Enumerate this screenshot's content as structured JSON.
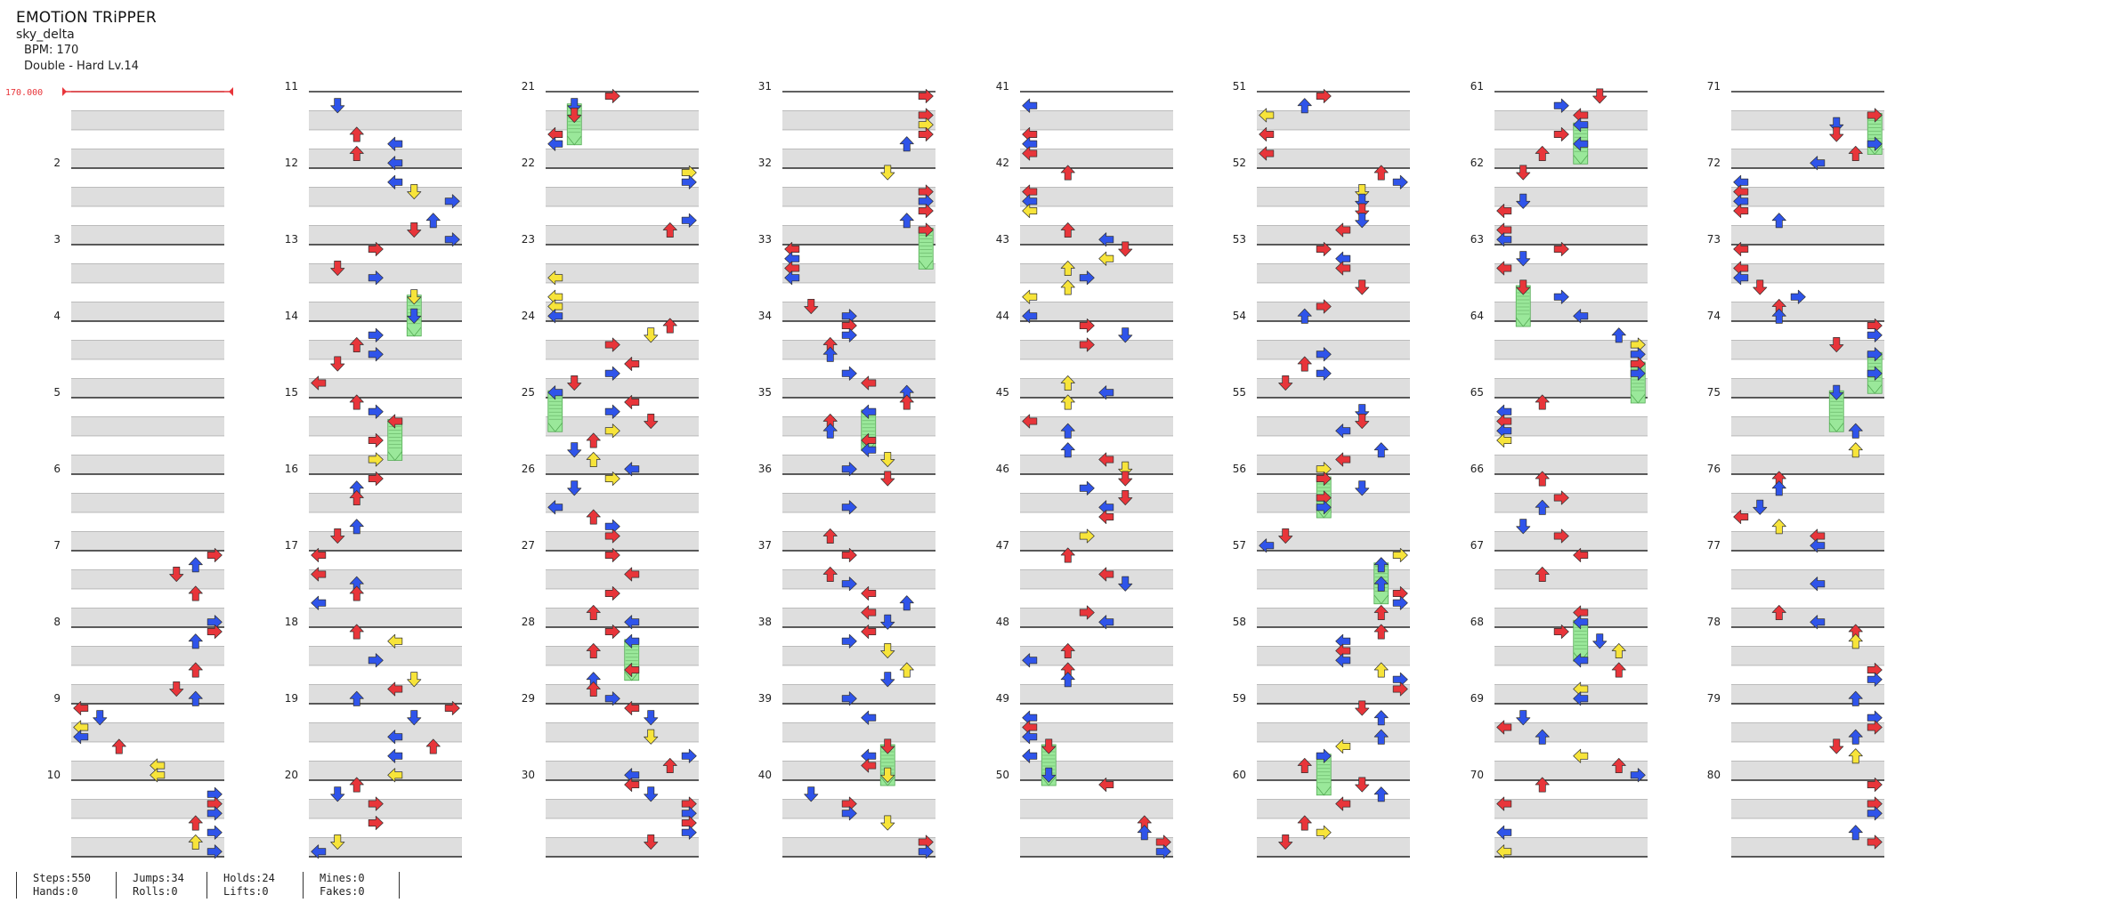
{
  "song": {
    "title": "EMOTiON TRiPPER",
    "artist": "sky_delta",
    "bpm": "BPM: 170",
    "difficulty": "Double - Hard  Lv.14"
  },
  "bpm_marker": {
    "label": "170.000",
    "color": "#e8353a"
  },
  "measure_numbers": [
    "",
    "2",
    "3",
    "4",
    "5",
    "6",
    "7",
    "8",
    "9",
    "10",
    "11",
    "12",
    "13",
    "14",
    "15",
    "16",
    "17",
    "18",
    "19",
    "20",
    "21",
    "22",
    "23",
    "24",
    "25",
    "26",
    "27",
    "28",
    "29",
    "30",
    "31",
    "32",
    "33",
    "34",
    "35",
    "36",
    "37",
    "38",
    "39",
    "40",
    "41",
    "42",
    "43",
    "44",
    "45",
    "46",
    "47",
    "48",
    "49",
    "50",
    "51",
    "52",
    "53",
    "54",
    "55",
    "56",
    "57",
    "58",
    "59",
    "60",
    "61",
    "62",
    "63",
    "64",
    "65",
    "66",
    "67",
    "68",
    "69",
    "70",
    "71",
    "72",
    "73",
    "74",
    "75",
    "76",
    "77",
    "78",
    "79",
    "80"
  ],
  "colors": {
    "quarter_note": "#e8353a",
    "eighth_note": "#2f54ea",
    "sixteenth_note": "#f7e43a",
    "hold": "#9ae89a",
    "measure_line": "#000000",
    "beat_band": "#dedede"
  },
  "stats": [
    {
      "a": "Steps:550",
      "b": "Hands:0"
    },
    {
      "a": "Jumps:34",
      "b": "Rolls:0"
    },
    {
      "a": "Holds:24",
      "b": "Lifts:0"
    },
    {
      "a": "Mines:0",
      "b": "Fakes:0"
    }
  ]
}
